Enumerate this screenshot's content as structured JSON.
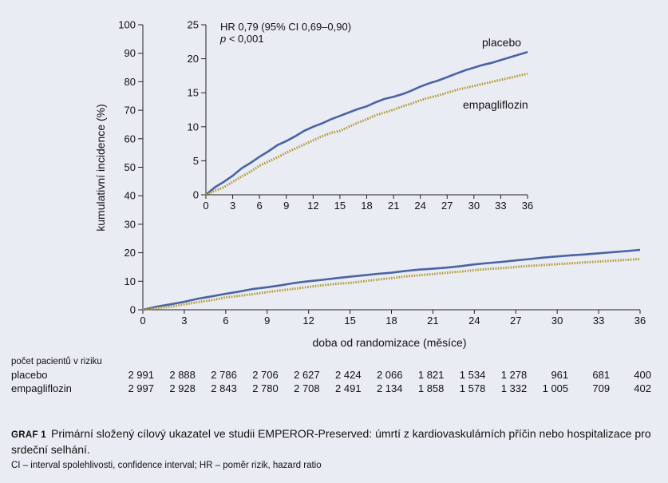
{
  "chart_data": {
    "type": "line",
    "ylabel": "kumulativní incidence (%)",
    "xlabel": "doba od randomizace (měsíce)",
    "xlim": [
      0,
      36
    ],
    "ylim": [
      0,
      100
    ],
    "x_ticks": [
      "0",
      "3",
      "6",
      "9",
      "12",
      "15",
      "18",
      "21",
      "24",
      "27",
      "30",
      "33",
      "36"
    ],
    "y_ticks": [
      "0",
      "10",
      "20",
      "30",
      "40",
      "50",
      "60",
      "70",
      "80",
      "90",
      "100"
    ],
    "colors": {
      "placebo": "#4a63a3",
      "empagliflozin": "#b49a3a"
    },
    "series": [
      {
        "name": "placebo",
        "x": [
          0,
          1,
          2,
          3,
          4,
          5,
          6,
          7,
          8,
          9,
          10,
          11,
          12,
          13,
          14,
          15,
          16,
          17,
          18,
          19,
          20,
          21,
          22,
          23,
          24,
          25,
          26,
          27,
          28,
          29,
          30,
          31,
          32,
          33,
          34,
          35,
          36
        ],
        "y": [
          0,
          1.1,
          1.9,
          2.8,
          3.9,
          4.7,
          5.6,
          6.4,
          7.3,
          7.9,
          8.6,
          9.4,
          10.0,
          10.5,
          11.1,
          11.6,
          12.1,
          12.6,
          13.0,
          13.6,
          14.1,
          14.4,
          14.8,
          15.3,
          15.9,
          16.4,
          16.8,
          17.3,
          17.8,
          18.3,
          18.7,
          19.1,
          19.4,
          19.8,
          20.2,
          20.6,
          21.0
        ]
      },
      {
        "name": "empagliflozin",
        "x": [
          0,
          1,
          2,
          3,
          4,
          5,
          6,
          7,
          8,
          9,
          10,
          11,
          12,
          13,
          14,
          15,
          16,
          17,
          18,
          19,
          20,
          21,
          22,
          23,
          24,
          25,
          26,
          27,
          28,
          29,
          30,
          31,
          32,
          33,
          34,
          35,
          36
        ],
        "y": [
          0,
          0.6,
          1.1,
          1.9,
          2.7,
          3.4,
          4.3,
          4.9,
          5.5,
          6.2,
          6.8,
          7.4,
          8.0,
          8.6,
          9.1,
          9.4,
          10.0,
          10.6,
          11.1,
          11.7,
          12.1,
          12.5,
          13.0,
          13.4,
          13.9,
          14.3,
          14.6,
          15.0,
          15.4,
          15.7,
          16.0,
          16.3,
          16.6,
          16.9,
          17.2,
          17.5,
          17.8
        ]
      }
    ],
    "inset": {
      "xlim": [
        0,
        36
      ],
      "ylim": [
        0,
        25
      ],
      "x_ticks": [
        "0",
        "3",
        "6",
        "9",
        "12",
        "15",
        "18",
        "21",
        "24",
        "27",
        "30",
        "33",
        "36"
      ],
      "y_ticks": [
        "0",
        "5",
        "10",
        "15",
        "20",
        "25"
      ],
      "annotation_line1": "HR 0,79 (95% CI 0,69–0,90)",
      "annotation_p": "p",
      "annotation_line2": " < 0,001",
      "label_placebo": "placebo",
      "label_empagliflozin": "empagliflozin"
    }
  },
  "risk_table": {
    "title": "počet pacientů v riziku",
    "rows": [
      {
        "name": "placebo",
        "values": [
          "2 991",
          "2 888",
          "2 786",
          "2 706",
          "2 627",
          "2 424",
          "2 066",
          "1 821",
          "1 534",
          "1 278",
          "961",
          "681",
          "400"
        ]
      },
      {
        "name": "empagliflozin",
        "values": [
          "2 997",
          "2 928",
          "2 843",
          "2 780",
          "2 708",
          "2 491",
          "2 134",
          "1 858",
          "1 578",
          "1 332",
          "1 005",
          "709",
          "402"
        ]
      }
    ]
  },
  "caption": {
    "label": "GRAF 1",
    "text": "Primární složený cílový ukazatel ve studii EMPEROR-Preserved: úmrtí z kardiovaskulárních příčin nebo hospitalizace pro srdeční selhání."
  },
  "footnote": "CI – interval spolehlivosti, confidence interval; HR – poměr rizik, hazard ratio"
}
